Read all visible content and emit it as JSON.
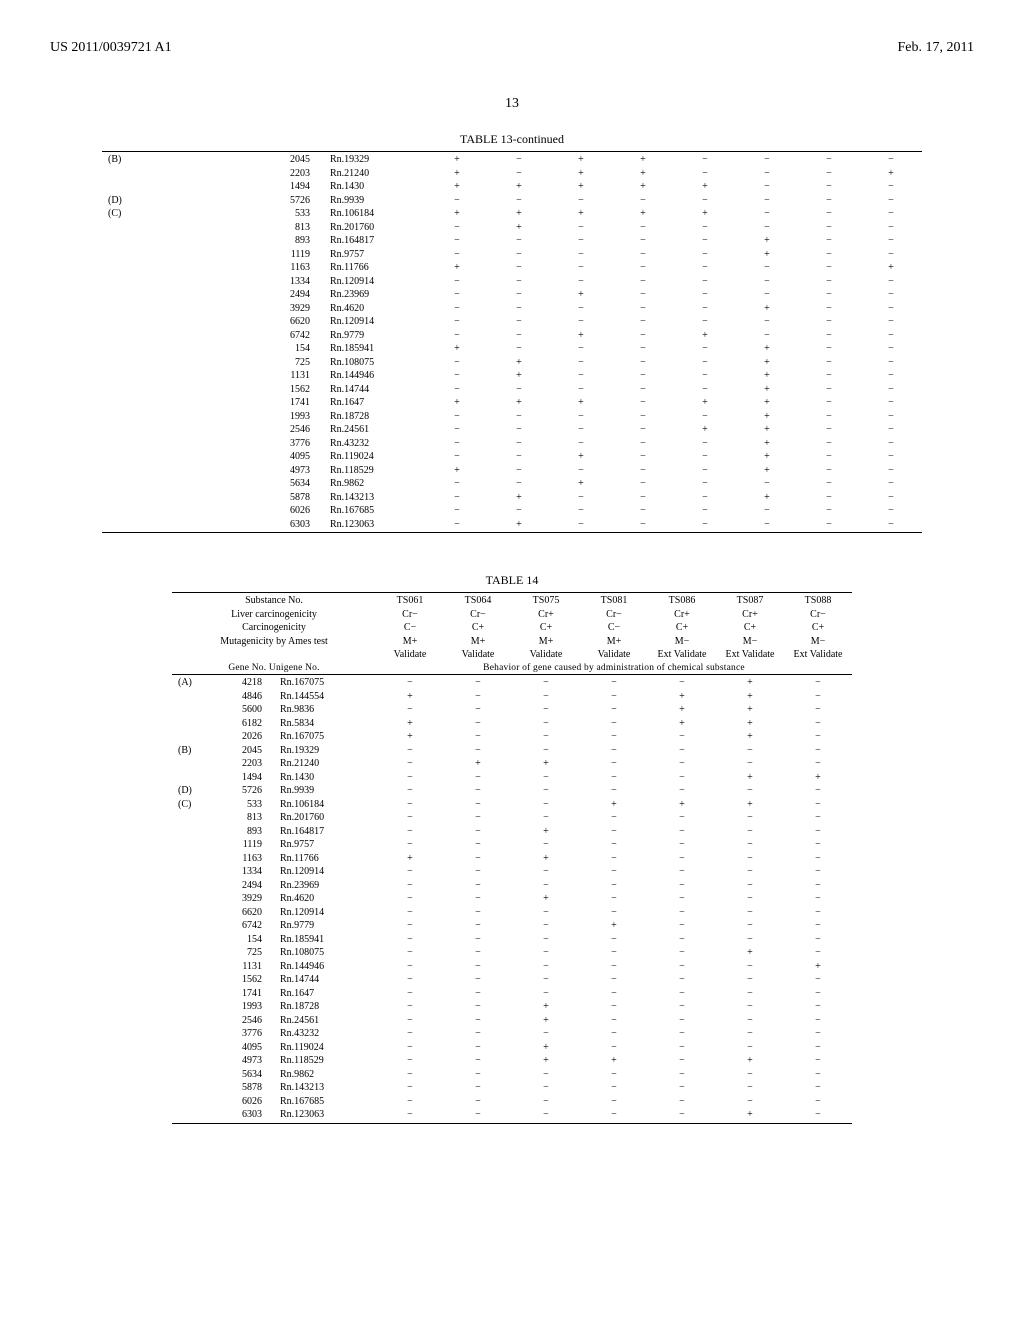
{
  "header": {
    "left": "US 2011/0039721 A1",
    "right": "Feb. 17, 2011"
  },
  "page_number": "13",
  "table13": {
    "title": "TABLE 13-continued",
    "rows": [
      {
        "group": "(B)",
        "gene": "2045",
        "uni": "Rn.19329",
        "v": [
          "+",
          "−",
          "+",
          "+",
          "−",
          "−",
          "−",
          "−"
        ]
      },
      {
        "group": "",
        "gene": "2203",
        "uni": "Rn.21240",
        "v": [
          "+",
          "−",
          "+",
          "+",
          "−",
          "−",
          "−",
          "+"
        ]
      },
      {
        "group": "",
        "gene": "1494",
        "uni": "Rn.1430",
        "v": [
          "+",
          "+",
          "+",
          "+",
          "+",
          "−",
          "−",
          "−"
        ]
      },
      {
        "group": "(D)",
        "gene": "5726",
        "uni": "Rn.9939",
        "v": [
          "−",
          "−",
          "−",
          "−",
          "−",
          "−",
          "−",
          "−"
        ]
      },
      {
        "group": "(C)",
        "gene": "533",
        "uni": "Rn.106184",
        "v": [
          "+",
          "+",
          "+",
          "+",
          "+",
          "−",
          "−",
          "−"
        ]
      },
      {
        "group": "",
        "gene": "813",
        "uni": "Rn.201760",
        "v": [
          "−",
          "+",
          "−",
          "−",
          "−",
          "−",
          "−",
          "−"
        ]
      },
      {
        "group": "",
        "gene": "893",
        "uni": "Rn.164817",
        "v": [
          "−",
          "−",
          "−",
          "−",
          "−",
          "+",
          "−",
          "−"
        ]
      },
      {
        "group": "",
        "gene": "1119",
        "uni": "Rn.9757",
        "v": [
          "−",
          "−",
          "−",
          "−",
          "−",
          "+",
          "−",
          "−"
        ]
      },
      {
        "group": "",
        "gene": "1163",
        "uni": "Rn.11766",
        "v": [
          "+",
          "−",
          "−",
          "−",
          "−",
          "−",
          "−",
          "+"
        ]
      },
      {
        "group": "",
        "gene": "1334",
        "uni": "Rn.120914",
        "v": [
          "−",
          "−",
          "−",
          "−",
          "−",
          "−",
          "−",
          "−"
        ]
      },
      {
        "group": "",
        "gene": "2494",
        "uni": "Rn.23969",
        "v": [
          "−",
          "−",
          "+",
          "−",
          "−",
          "−",
          "−",
          "−"
        ]
      },
      {
        "group": "",
        "gene": "3929",
        "uni": "Rn.4620",
        "v": [
          "−",
          "−",
          "−",
          "−",
          "−",
          "+",
          "−",
          "−"
        ]
      },
      {
        "group": "",
        "gene": "6620",
        "uni": "Rn.120914",
        "v": [
          "−",
          "−",
          "−",
          "−",
          "−",
          "−",
          "−",
          "−"
        ]
      },
      {
        "group": "",
        "gene": "6742",
        "uni": "Rn.9779",
        "v": [
          "−",
          "−",
          "+",
          "−",
          "+",
          "−",
          "−",
          "−"
        ]
      },
      {
        "group": "",
        "gene": "154",
        "uni": "Rn.185941",
        "v": [
          "+",
          "−",
          "−",
          "−",
          "−",
          "+",
          "−",
          "−"
        ]
      },
      {
        "group": "",
        "gene": "725",
        "uni": "Rn.108075",
        "v": [
          "−",
          "+",
          "−",
          "−",
          "−",
          "+",
          "−",
          "−"
        ]
      },
      {
        "group": "",
        "gene": "1131",
        "uni": "Rn.144946",
        "v": [
          "−",
          "+",
          "−",
          "−",
          "−",
          "+",
          "−",
          "−"
        ]
      },
      {
        "group": "",
        "gene": "1562",
        "uni": "Rn.14744",
        "v": [
          "−",
          "−",
          "−",
          "−",
          "−",
          "+",
          "−",
          "−"
        ]
      },
      {
        "group": "",
        "gene": "1741",
        "uni": "Rn.1647",
        "v": [
          "+",
          "+",
          "+",
          "−",
          "+",
          "+",
          "−",
          "−"
        ]
      },
      {
        "group": "",
        "gene": "1993",
        "uni": "Rn.18728",
        "v": [
          "−",
          "−",
          "−",
          "−",
          "−",
          "+",
          "−",
          "−"
        ]
      },
      {
        "group": "",
        "gene": "2546",
        "uni": "Rn.24561",
        "v": [
          "−",
          "−",
          "−",
          "−",
          "+",
          "+",
          "−",
          "−"
        ]
      },
      {
        "group": "",
        "gene": "3776",
        "uni": "Rn.43232",
        "v": [
          "−",
          "−",
          "−",
          "−",
          "−",
          "+",
          "−",
          "−"
        ]
      },
      {
        "group": "",
        "gene": "4095",
        "uni": "Rn.119024",
        "v": [
          "−",
          "−",
          "+",
          "−",
          "−",
          "+",
          "−",
          "−"
        ]
      },
      {
        "group": "",
        "gene": "4973",
        "uni": "Rn.118529",
        "v": [
          "+",
          "−",
          "−",
          "−",
          "−",
          "+",
          "−",
          "−"
        ]
      },
      {
        "group": "",
        "gene": "5634",
        "uni": "Rn.9862",
        "v": [
          "−",
          "−",
          "+",
          "−",
          "−",
          "−",
          "−",
          "−"
        ]
      },
      {
        "group": "",
        "gene": "5878",
        "uni": "Rn.143213",
        "v": [
          "−",
          "+",
          "−",
          "−",
          "−",
          "+",
          "−",
          "−"
        ]
      },
      {
        "group": "",
        "gene": "6026",
        "uni": "Rn.167685",
        "v": [
          "−",
          "−",
          "−",
          "−",
          "−",
          "−",
          "−",
          "−"
        ]
      },
      {
        "group": "",
        "gene": "6303",
        "uni": "Rn.123063",
        "v": [
          "−",
          "+",
          "−",
          "−",
          "−",
          "−",
          "−",
          "−"
        ]
      }
    ]
  },
  "table14": {
    "title": "TABLE 14",
    "header": {
      "line1": [
        "Substance No.",
        "TS061",
        "TS064",
        "TS075",
        "TS081",
        "TS086",
        "TS087",
        "TS088"
      ],
      "line2": [
        "Liver carcinogenicity",
        "Cr−",
        "Cr−",
        "Cr+",
        "Cr−",
        "Cr+",
        "Cr+",
        "Cr−"
      ],
      "line3": [
        "Carcinogenicity",
        "C−",
        "C+",
        "C+",
        "C−",
        "C+",
        "C+",
        "C+"
      ],
      "line4": [
        "Mutagenicity by Ames test",
        "M+",
        "M+",
        "M+",
        "M+",
        "M−",
        "M−",
        "M−"
      ],
      "line5": [
        "",
        "Validate",
        "Validate",
        "Validate",
        "Validate",
        "Ext Validate",
        "Ext Validate",
        "Ext Validate"
      ],
      "line6_left": "Gene No.  Unigene No.",
      "line6_right": "Behavior of gene caused by administration of chemical substance"
    },
    "rows": [
      {
        "group": "(A)",
        "gene": "4218",
        "uni": "Rn.167075",
        "v": [
          "−",
          "−",
          "−",
          "−",
          "−",
          "+",
          "−"
        ]
      },
      {
        "group": "",
        "gene": "4846",
        "uni": "Rn.144554",
        "v": [
          "+",
          "−",
          "−",
          "−",
          "+",
          "+",
          "−"
        ]
      },
      {
        "group": "",
        "gene": "5600",
        "uni": "Rn.9836",
        "v": [
          "−",
          "−",
          "−",
          "−",
          "+",
          "+",
          "−"
        ]
      },
      {
        "group": "",
        "gene": "6182",
        "uni": "Rn.5834",
        "v": [
          "+",
          "−",
          "−",
          "−",
          "+",
          "+",
          "−"
        ]
      },
      {
        "group": "",
        "gene": "2026",
        "uni": "Rn.167075",
        "v": [
          "+",
          "−",
          "−",
          "−",
          "−",
          "+",
          "−"
        ]
      },
      {
        "group": "(B)",
        "gene": "2045",
        "uni": "Rn.19329",
        "v": [
          "−",
          "−",
          "−",
          "−",
          "−",
          "−",
          "−"
        ]
      },
      {
        "group": "",
        "gene": "2203",
        "uni": "Rn.21240",
        "v": [
          "−",
          "+",
          "+",
          "−",
          "−",
          "−",
          "−"
        ]
      },
      {
        "group": "",
        "gene": "1494",
        "uni": "Rn.1430",
        "v": [
          "−",
          "−",
          "−",
          "−",
          "−",
          "+",
          "+"
        ]
      },
      {
        "group": "(D)",
        "gene": "5726",
        "uni": "Rn.9939",
        "v": [
          "−",
          "−",
          "−",
          "−",
          "−",
          "−",
          "−"
        ]
      },
      {
        "group": "(C)",
        "gene": "533",
        "uni": "Rn.106184",
        "v": [
          "−",
          "−",
          "−",
          "+",
          "+",
          "+",
          "−"
        ]
      },
      {
        "group": "",
        "gene": "813",
        "uni": "Rn.201760",
        "v": [
          "−",
          "−",
          "−",
          "−",
          "−",
          "−",
          "−"
        ]
      },
      {
        "group": "",
        "gene": "893",
        "uni": "Rn.164817",
        "v": [
          "−",
          "−",
          "+",
          "−",
          "−",
          "−",
          "−"
        ]
      },
      {
        "group": "",
        "gene": "1119",
        "uni": "Rn.9757",
        "v": [
          "−",
          "−",
          "−",
          "−",
          "−",
          "−",
          "−"
        ]
      },
      {
        "group": "",
        "gene": "1163",
        "uni": "Rn.11766",
        "v": [
          "+",
          "−",
          "+",
          "−",
          "−",
          "−",
          "−"
        ]
      },
      {
        "group": "",
        "gene": "1334",
        "uni": "Rn.120914",
        "v": [
          "−",
          "−",
          "−",
          "−",
          "−",
          "−",
          "−"
        ]
      },
      {
        "group": "",
        "gene": "2494",
        "uni": "Rn.23969",
        "v": [
          "−",
          "−",
          "−",
          "−",
          "−",
          "−",
          "−"
        ]
      },
      {
        "group": "",
        "gene": "3929",
        "uni": "Rn.4620",
        "v": [
          "−",
          "−",
          "+",
          "−",
          "−",
          "−",
          "−"
        ]
      },
      {
        "group": "",
        "gene": "6620",
        "uni": "Rn.120914",
        "v": [
          "−",
          "−",
          "−",
          "−",
          "−",
          "−",
          "−"
        ]
      },
      {
        "group": "",
        "gene": "6742",
        "uni": "Rn.9779",
        "v": [
          "−",
          "−",
          "−",
          "+",
          "−",
          "−",
          "−"
        ]
      },
      {
        "group": "",
        "gene": "154",
        "uni": "Rn.185941",
        "v": [
          "−",
          "−",
          "−",
          "−",
          "−",
          "−",
          "−"
        ]
      },
      {
        "group": "",
        "gene": "725",
        "uni": "Rn.108075",
        "v": [
          "−",
          "−",
          "−",
          "−",
          "−",
          "+",
          "−"
        ]
      },
      {
        "group": "",
        "gene": "1131",
        "uni": "Rn.144946",
        "v": [
          "−",
          "−",
          "−",
          "−",
          "−",
          "−",
          "+"
        ]
      },
      {
        "group": "",
        "gene": "1562",
        "uni": "Rn.14744",
        "v": [
          "−",
          "−",
          "−",
          "−",
          "−",
          "−",
          "−"
        ]
      },
      {
        "group": "",
        "gene": "1741",
        "uni": "Rn.1647",
        "v": [
          "−",
          "−",
          "−",
          "−",
          "−",
          "−",
          "−"
        ]
      },
      {
        "group": "",
        "gene": "1993",
        "uni": "Rn.18728",
        "v": [
          "−",
          "−",
          "+",
          "−",
          "−",
          "−",
          "−"
        ]
      },
      {
        "group": "",
        "gene": "2546",
        "uni": "Rn.24561",
        "v": [
          "−",
          "−",
          "+",
          "−",
          "−",
          "−",
          "−"
        ]
      },
      {
        "group": "",
        "gene": "3776",
        "uni": "Rn.43232",
        "v": [
          "−",
          "−",
          "−",
          "−",
          "−",
          "−",
          "−"
        ]
      },
      {
        "group": "",
        "gene": "4095",
        "uni": "Rn.119024",
        "v": [
          "−",
          "−",
          "+",
          "−",
          "−",
          "−",
          "−"
        ]
      },
      {
        "group": "",
        "gene": "4973",
        "uni": "Rn.118529",
        "v": [
          "−",
          "−",
          "+",
          "+",
          "−",
          "+",
          "−"
        ]
      },
      {
        "group": "",
        "gene": "5634",
        "uni": "Rn.9862",
        "v": [
          "−",
          "−",
          "−",
          "−",
          "−",
          "−",
          "−"
        ]
      },
      {
        "group": "",
        "gene": "5878",
        "uni": "Rn.143213",
        "v": [
          "−",
          "−",
          "−",
          "−",
          "−",
          "−",
          "−"
        ]
      },
      {
        "group": "",
        "gene": "6026",
        "uni": "Rn.167685",
        "v": [
          "−",
          "−",
          "−",
          "−",
          "−",
          "−",
          "−"
        ]
      },
      {
        "group": "",
        "gene": "6303",
        "uni": "Rn.123063",
        "v": [
          "−",
          "−",
          "−",
          "−",
          "−",
          "+",
          "−"
        ]
      }
    ]
  }
}
